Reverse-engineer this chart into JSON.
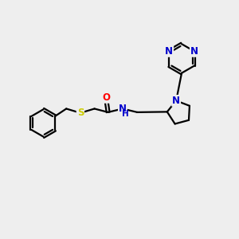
{
  "bg_color": "#eeeeee",
  "bond_color": "#000000",
  "atom_colors": {
    "N": "#0000cc",
    "O": "#ff0000",
    "S": "#cccc00",
    "C": "#000000",
    "H": "#000000"
  },
  "font_size": 8.5,
  "line_width": 1.6,
  "figsize": [
    3.0,
    3.0
  ],
  "dpi": 100
}
